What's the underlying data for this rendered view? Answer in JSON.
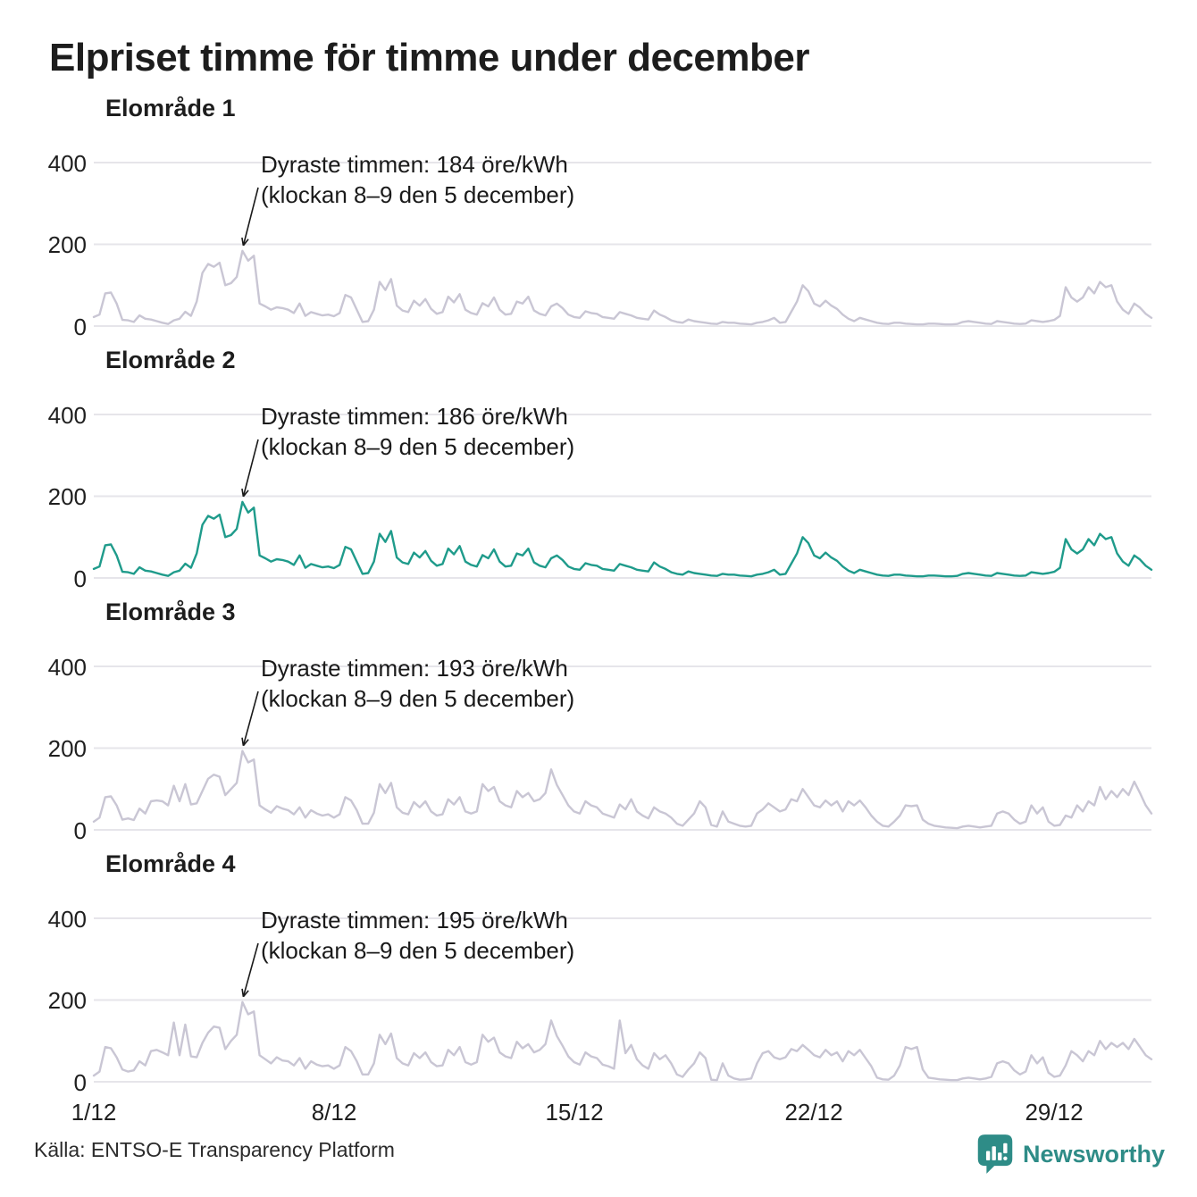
{
  "title": "Elpriset timme för timme under december",
  "source": "Källa: ENTSO-E Transparency Platform",
  "brand": {
    "name": "Newsworthy",
    "color": "#2e8c87"
  },
  "colors": {
    "series_default": "#c9c6d4",
    "series_highlight": "#1f9b8b",
    "gridline": "#e6e5ea",
    "annotation_arrow": "#1a1a1a",
    "text": "#1a1a1a"
  },
  "axis": {
    "y_ticks": [
      "400",
      "200",
      "0"
    ],
    "x_ticks": [
      "1/12",
      "8/12",
      "15/12",
      "22/12",
      "29/12"
    ],
    "ylim": [
      0,
      400
    ],
    "y_gridlines": [
      0,
      200,
      400
    ],
    "x_range": "1 december – 31 december, timvärden",
    "grid": "horizontal-only",
    "unit": "öre/kWh"
  },
  "chart_data": [
    {
      "type": "line",
      "title": "Elområde 1",
      "highlight": false,
      "annotation": {
        "line1": "Dyraste timmen: 184 öre/kWh",
        "line2": "(klockan 8–9 den 5 december)",
        "max_value": 184,
        "max_time": "klockan 8–9 den 5 december"
      },
      "hours_per_point": 4,
      "values": [
        22,
        28,
        80,
        82,
        55,
        15,
        14,
        10,
        26,
        18,
        16,
        12,
        8,
        5,
        14,
        18,
        35,
        25,
        60,
        130,
        152,
        145,
        155,
        100,
        105,
        120,
        184,
        160,
        172,
        55,
        48,
        40,
        46,
        44,
        40,
        32,
        55,
        25,
        34,
        30,
        26,
        28,
        24,
        32,
        76,
        70,
        40,
        10,
        12,
        40,
        108,
        88,
        115,
        50,
        38,
        34,
        62,
        50,
        66,
        42,
        30,
        34,
        72,
        58,
        78,
        40,
        32,
        28,
        56,
        48,
        70,
        40,
        28,
        30,
        60,
        55,
        72,
        38,
        30,
        26,
        48,
        55,
        44,
        28,
        22,
        20,
        36,
        32,
        30,
        22,
        20,
        18,
        34,
        30,
        26,
        20,
        18,
        16,
        38,
        28,
        22,
        14,
        10,
        8,
        16,
        12,
        10,
        8,
        6,
        5,
        10,
        8,
        8,
        6,
        5,
        4,
        8,
        10,
        14,
        20,
        8,
        10,
        35,
        60,
        100,
        85,
        55,
        48,
        62,
        50,
        42,
        28,
        18,
        12,
        20,
        16,
        12,
        8,
        6,
        5,
        8,
        8,
        6,
        5,
        4,
        4,
        6,
        6,
        5,
        4,
        4,
        5,
        10,
        12,
        10,
        8,
        6,
        5,
        12,
        10,
        8,
        6,
        5,
        6,
        14,
        12,
        10,
        12,
        15,
        25,
        95,
        70,
        60,
        70,
        95,
        80,
        108,
        95,
        100,
        60,
        40,
        30,
        55,
        45,
        30,
        20
      ]
    },
    {
      "type": "line",
      "title": "Elområde 2",
      "highlight": true,
      "annotation": {
        "line1": "Dyraste timmen: 186 öre/kWh",
        "line2": "(klockan 8–9 den 5 december)",
        "max_value": 186,
        "max_time": "klockan 8–9 den 5 december"
      },
      "hours_per_point": 4,
      "values": [
        22,
        28,
        80,
        82,
        55,
        15,
        14,
        10,
        26,
        18,
        16,
        12,
        8,
        5,
        14,
        18,
        35,
        25,
        60,
        130,
        152,
        145,
        155,
        100,
        105,
        120,
        186,
        160,
        172,
        55,
        48,
        40,
        46,
        44,
        40,
        32,
        55,
        25,
        34,
        30,
        26,
        28,
        24,
        32,
        76,
        70,
        40,
        10,
        12,
        40,
        108,
        88,
        115,
        50,
        38,
        34,
        62,
        50,
        66,
        42,
        30,
        34,
        72,
        58,
        78,
        40,
        32,
        28,
        56,
        48,
        70,
        40,
        28,
        30,
        60,
        55,
        72,
        38,
        30,
        26,
        48,
        55,
        44,
        28,
        22,
        20,
        36,
        32,
        30,
        22,
        20,
        18,
        34,
        30,
        26,
        20,
        18,
        16,
        38,
        28,
        22,
        14,
        10,
        8,
        16,
        12,
        10,
        8,
        6,
        5,
        10,
        8,
        8,
        6,
        5,
        4,
        8,
        10,
        14,
        20,
        8,
        10,
        35,
        60,
        100,
        85,
        55,
        48,
        62,
        50,
        42,
        28,
        18,
        12,
        20,
        16,
        12,
        8,
        6,
        5,
        8,
        8,
        6,
        5,
        4,
        4,
        6,
        6,
        5,
        4,
        4,
        5,
        10,
        12,
        10,
        8,
        6,
        5,
        12,
        10,
        8,
        6,
        5,
        6,
        14,
        12,
        10,
        12,
        15,
        25,
        95,
        70,
        60,
        70,
        95,
        80,
        108,
        95,
        100,
        60,
        40,
        30,
        55,
        45,
        30,
        20
      ]
    },
    {
      "type": "line",
      "title": "Elområde 3",
      "highlight": false,
      "annotation": {
        "line1": "Dyraste timmen: 193 öre/kWh",
        "line2": "(klockan 8–9 den 5 december)",
        "max_value": 193,
        "max_time": "klockan 8–9 den 5 december"
      },
      "hours_per_point": 4,
      "values": [
        20,
        30,
        80,
        82,
        60,
        25,
        28,
        24,
        52,
        40,
        70,
        72,
        70,
        60,
        108,
        70,
        112,
        62,
        65,
        95,
        125,
        135,
        130,
        85,
        100,
        115,
        193,
        165,
        172,
        60,
        50,
        42,
        58,
        52,
        48,
        38,
        55,
        30,
        48,
        40,
        35,
        38,
        30,
        38,
        80,
        72,
        48,
        15,
        15,
        42,
        112,
        90,
        115,
        55,
        42,
        38,
        68,
        55,
        70,
        45,
        35,
        38,
        75,
        62,
        80,
        45,
        40,
        45,
        112,
        95,
        105,
        70,
        60,
        55,
        95,
        80,
        90,
        70,
        75,
        90,
        148,
        110,
        85,
        60,
        45,
        40,
        70,
        60,
        55,
        40,
        35,
        30,
        62,
        50,
        75,
        45,
        35,
        28,
        55,
        45,
        40,
        30,
        15,
        10,
        25,
        40,
        70,
        55,
        12,
        8,
        45,
        20,
        15,
        10,
        8,
        10,
        40,
        50,
        65,
        55,
        45,
        50,
        75,
        70,
        100,
        80,
        60,
        55,
        72,
        60,
        70,
        45,
        70,
        60,
        72,
        55,
        35,
        20,
        10,
        8,
        20,
        35,
        60,
        58,
        60,
        25,
        15,
        10,
        8,
        6,
        5,
        4,
        8,
        10,
        8,
        6,
        8,
        10,
        40,
        45,
        40,
        25,
        15,
        20,
        60,
        40,
        55,
        20,
        10,
        12,
        35,
        30,
        60,
        45,
        70,
        60,
        105,
        75,
        95,
        80,
        100,
        85,
        118,
        90,
        60,
        40
      ]
    },
    {
      "type": "line",
      "title": "Elområde 4",
      "highlight": false,
      "annotation": {
        "line1": "Dyraste timmen: 195 öre/kWh",
        "line2": "(klockan 8–9 den 5 december)",
        "max_value": 195,
        "max_time": "klockan 8–9 den 5 december"
      },
      "hours_per_point": 4,
      "values": [
        15,
        25,
        85,
        82,
        60,
        30,
        25,
        28,
        50,
        40,
        75,
        78,
        72,
        65,
        145,
        65,
        140,
        62,
        60,
        95,
        120,
        135,
        132,
        80,
        100,
        115,
        195,
        165,
        172,
        65,
        55,
        45,
        60,
        52,
        50,
        40,
        58,
        32,
        50,
        42,
        38,
        40,
        32,
        40,
        85,
        75,
        50,
        18,
        18,
        45,
        115,
        92,
        118,
        58,
        45,
        40,
        70,
        58,
        72,
        48,
        38,
        40,
        78,
        65,
        85,
        48,
        42,
        48,
        115,
        98,
        108,
        72,
        62,
        58,
        98,
        82,
        92,
        72,
        78,
        92,
        150,
        112,
        88,
        62,
        48,
        42,
        72,
        62,
        58,
        42,
        38,
        32,
        150,
        70,
        90,
        55,
        40,
        32,
        70,
        55,
        65,
        45,
        18,
        12,
        30,
        45,
        72,
        58,
        5,
        4,
        45,
        15,
        8,
        5,
        6,
        8,
        45,
        70,
        75,
        60,
        55,
        60,
        80,
        75,
        90,
        78,
        65,
        60,
        78,
        65,
        72,
        50,
        75,
        65,
        78,
        58,
        38,
        10,
        6,
        5,
        15,
        40,
        85,
        80,
        85,
        30,
        10,
        8,
        6,
        5,
        4,
        4,
        8,
        10,
        8,
        6,
        8,
        12,
        45,
        50,
        45,
        28,
        18,
        25,
        65,
        45,
        60,
        22,
        12,
        15,
        40,
        75,
        65,
        50,
        75,
        65,
        100,
        80,
        95,
        85,
        95,
        80,
        105,
        85,
        65,
        55
      ]
    }
  ]
}
